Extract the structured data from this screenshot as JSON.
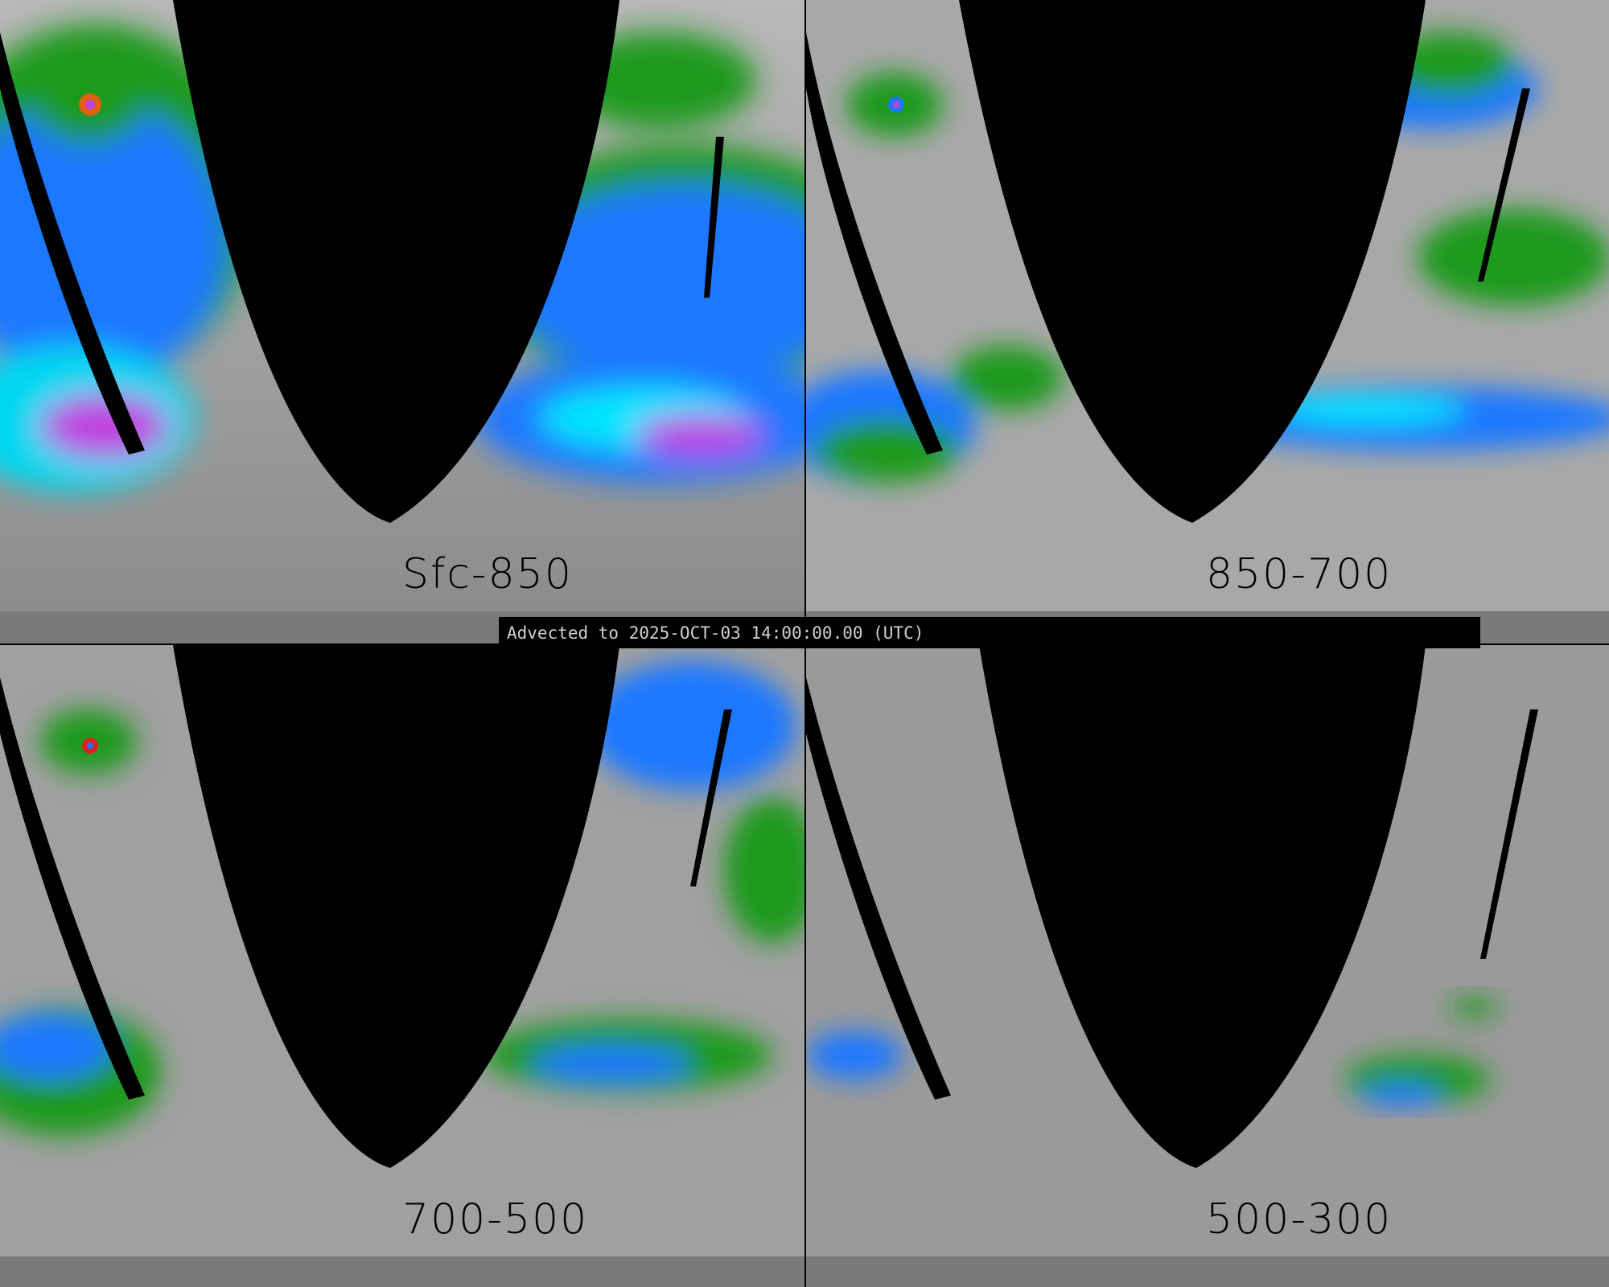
{
  "banner": {
    "text": "Advected to 2025-OCT-03 14:00:00.00 (UTC)"
  },
  "panels": [
    {
      "label": "Sfc-850"
    },
    {
      "label": "850-700"
    },
    {
      "label": "700-500"
    },
    {
      "label": "500-300"
    }
  ],
  "colors": {
    "background_gray": "#8a8a8a",
    "mask": "#000000",
    "green": "#1a9a1a",
    "blue": "#1e78ff",
    "cyan": "#00e5ff",
    "magenta": "#c040e0",
    "red": "#e02020"
  }
}
